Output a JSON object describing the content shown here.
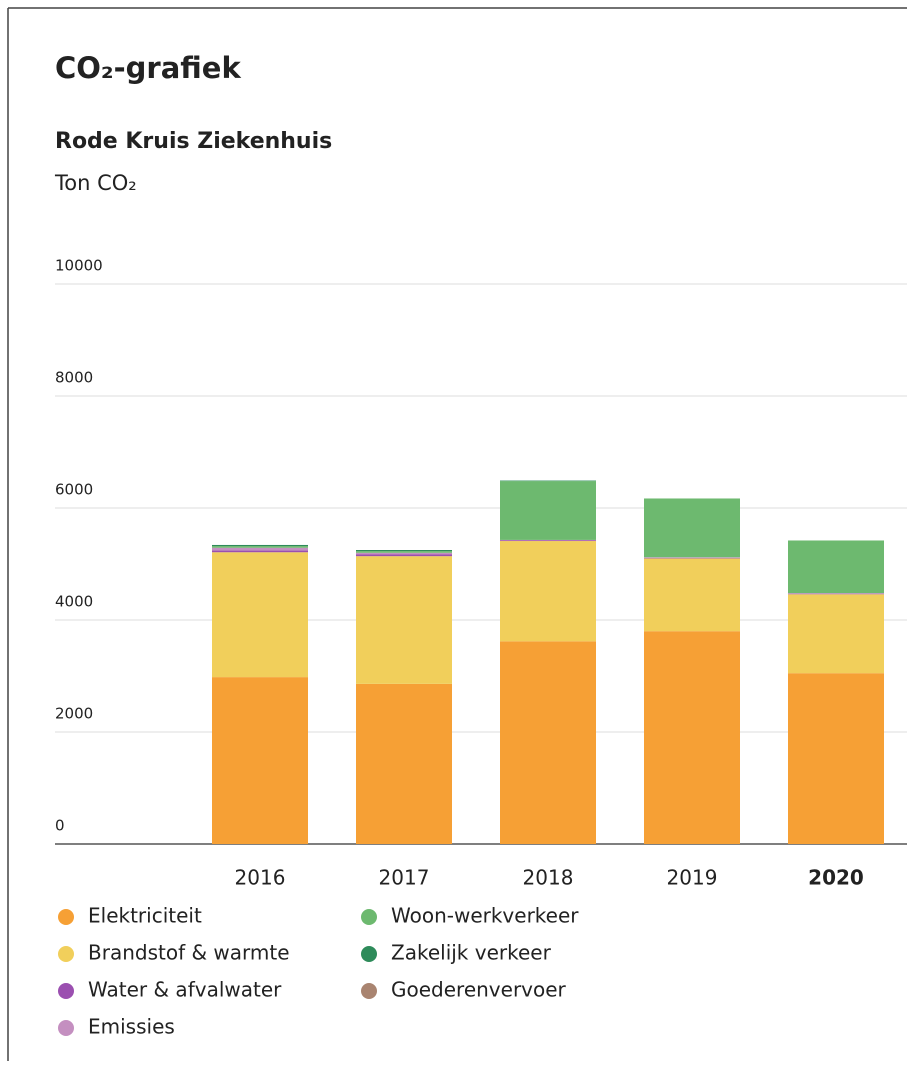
{
  "chart_data": {
    "type": "stacked_bar",
    "title": "CO₂-grafiek",
    "subtitle": "Rode Kruis Ziekenhuis",
    "y_label": "Ton CO₂",
    "categories": [
      "2016",
      "2017",
      "2018",
      "2019",
      "2020"
    ],
    "highlighted_category": "2020",
    "series": [
      {
        "name": "Elektriciteit",
        "color": "#f6a035",
        "values": [
          2980,
          2860,
          3620,
          3800,
          3050
        ]
      },
      {
        "name": "Brandstof & warmte",
        "color": "#f1cf5b",
        "values": [
          2230,
          2280,
          1790,
          1300,
          1410
        ]
      },
      {
        "name": "Water & afvalwater",
        "color": "#9b4fb0",
        "values": [
          30,
          30,
          10,
          10,
          10
        ]
      },
      {
        "name": "Emissies",
        "color": "#c48fc0",
        "values": [
          50,
          30,
          10,
          10,
          10
        ]
      },
      {
        "name": "Woon-werkverkeer",
        "color": "#6db96f",
        "values": [
          30,
          30,
          1050,
          1050,
          940
        ]
      },
      {
        "name": "Zakelijk verkeer",
        "color": "#2e8b5a",
        "values": [
          20,
          20,
          10,
          0,
          0
        ]
      },
      {
        "name": "Goederenvervoer",
        "color": "#a98470",
        "values": [
          0,
          0,
          0,
          0,
          0
        ]
      }
    ],
    "ylim": [
      0,
      10000
    ],
    "yticks": [
      0,
      2000,
      4000,
      6000,
      8000,
      10000
    ],
    "grid": true
  }
}
